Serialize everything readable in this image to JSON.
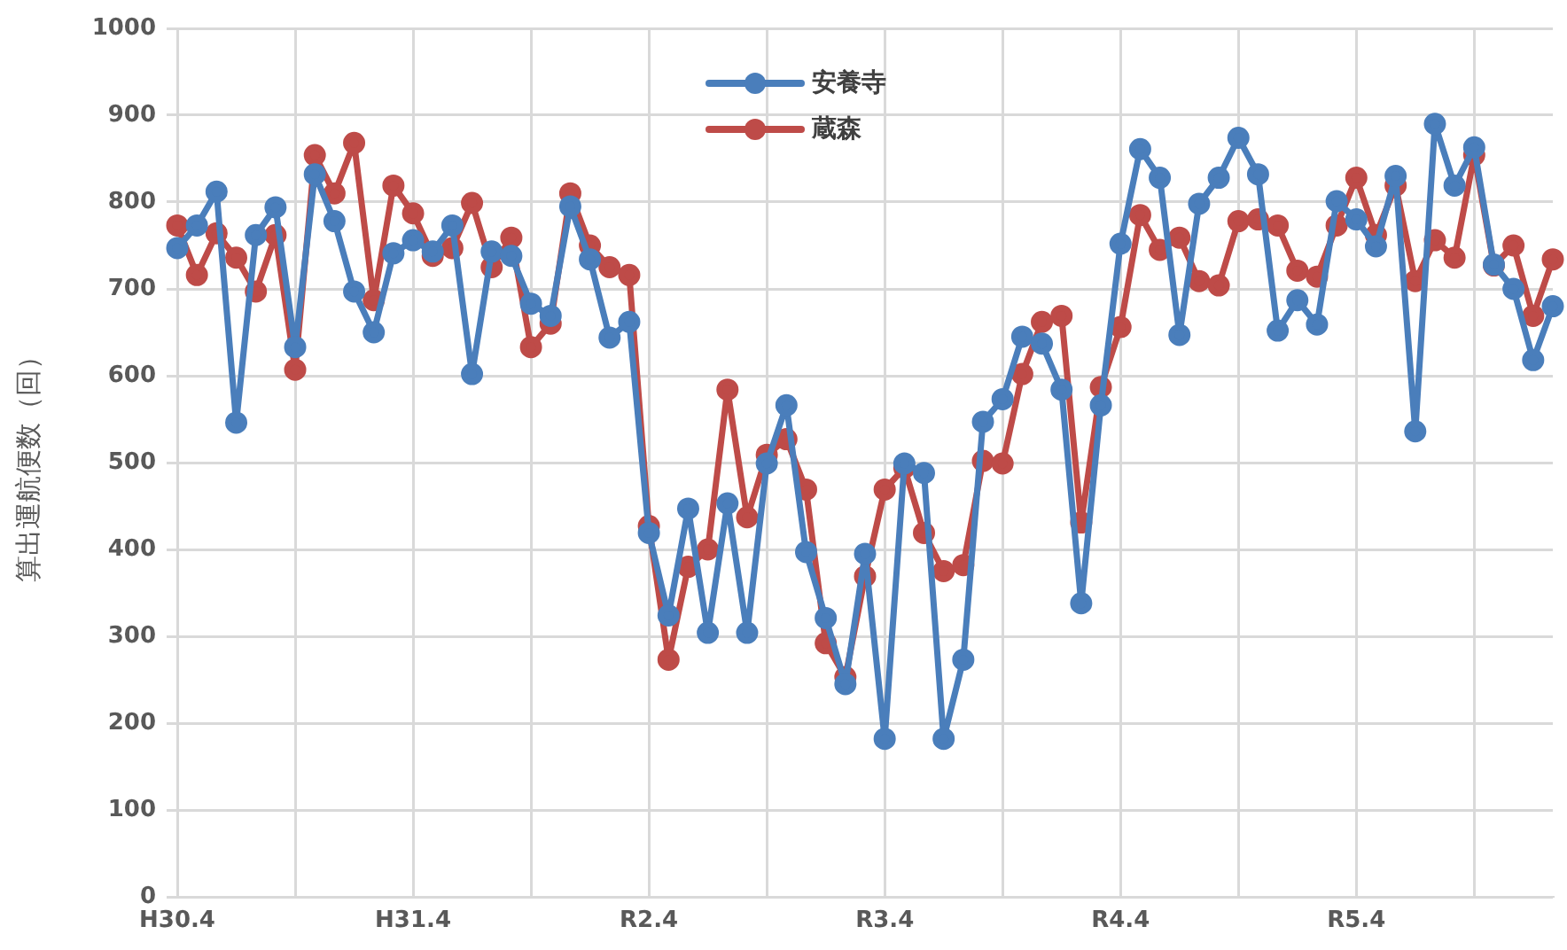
{
  "chart_data": {
    "type": "line",
    "ylabel": "算出運航便数（回）",
    "categories": [
      "H30.4",
      null,
      null,
      null,
      null,
      null,
      null,
      null,
      null,
      null,
      null,
      null,
      "H31.4",
      null,
      null,
      null,
      null,
      null,
      null,
      null,
      null,
      null,
      null,
      null,
      "R2.4",
      null,
      null,
      null,
      null,
      null,
      null,
      null,
      null,
      null,
      null,
      null,
      "R3.4",
      null,
      null,
      null,
      null,
      null,
      null,
      null,
      null,
      null,
      null,
      null,
      "R4.4",
      null,
      null,
      null,
      null,
      null,
      null,
      null,
      null,
      null,
      null,
      null,
      "R5.4",
      null,
      null,
      null,
      null,
      null,
      null,
      null,
      null,
      null,
      null
    ],
    "series": [
      {
        "name": "安養寺",
        "color": "#4a7ebb",
        "values": [
          747,
          773,
          812,
          546,
          762,
          794,
          633,
          832,
          778,
          697,
          650,
          741,
          756,
          743,
          773,
          602,
          743,
          738,
          683,
          669,
          795,
          734,
          644,
          662,
          419,
          324,
          447,
          304,
          453,
          304,
          499,
          566,
          397,
          321,
          245,
          395,
          182,
          499,
          488,
          182,
          273,
          547,
          573,
          645,
          637,
          584,
          338,
          566,
          752,
          861,
          828,
          647,
          798,
          828,
          874,
          832,
          652,
          687,
          659,
          801,
          780,
          749,
          830,
          536,
          890,
          819,
          863,
          728,
          700,
          618,
          680
        ]
      },
      {
        "name": "蔵森",
        "color": "#be4b48",
        "values": [
          773,
          716,
          764,
          736,
          697,
          762,
          607,
          854,
          810,
          868,
          687,
          819,
          787,
          738,
          747,
          799,
          725,
          759,
          633,
          660,
          810,
          750,
          725,
          716,
          427,
          273,
          380,
          400,
          584,
          437,
          509,
          527,
          469,
          292,
          253,
          369,
          469,
          494,
          419,
          375,
          382,
          502,
          499,
          602,
          662,
          669,
          431,
          587,
          656,
          785,
          745,
          759,
          709,
          704,
          778,
          780,
          773,
          721,
          714,
          773,
          828,
          762,
          819,
          709,
          756,
          736,
          854,
          727,
          750,
          669,
          734
        ]
      }
    ],
    "ylim": [
      0,
      1000
    ],
    "yticks": [
      0,
      100,
      200,
      300,
      400,
      500,
      600,
      700,
      800,
      900,
      1000
    ],
    "grid": true,
    "legend": "top",
    "marker": "circle",
    "line_style": "solid"
  }
}
